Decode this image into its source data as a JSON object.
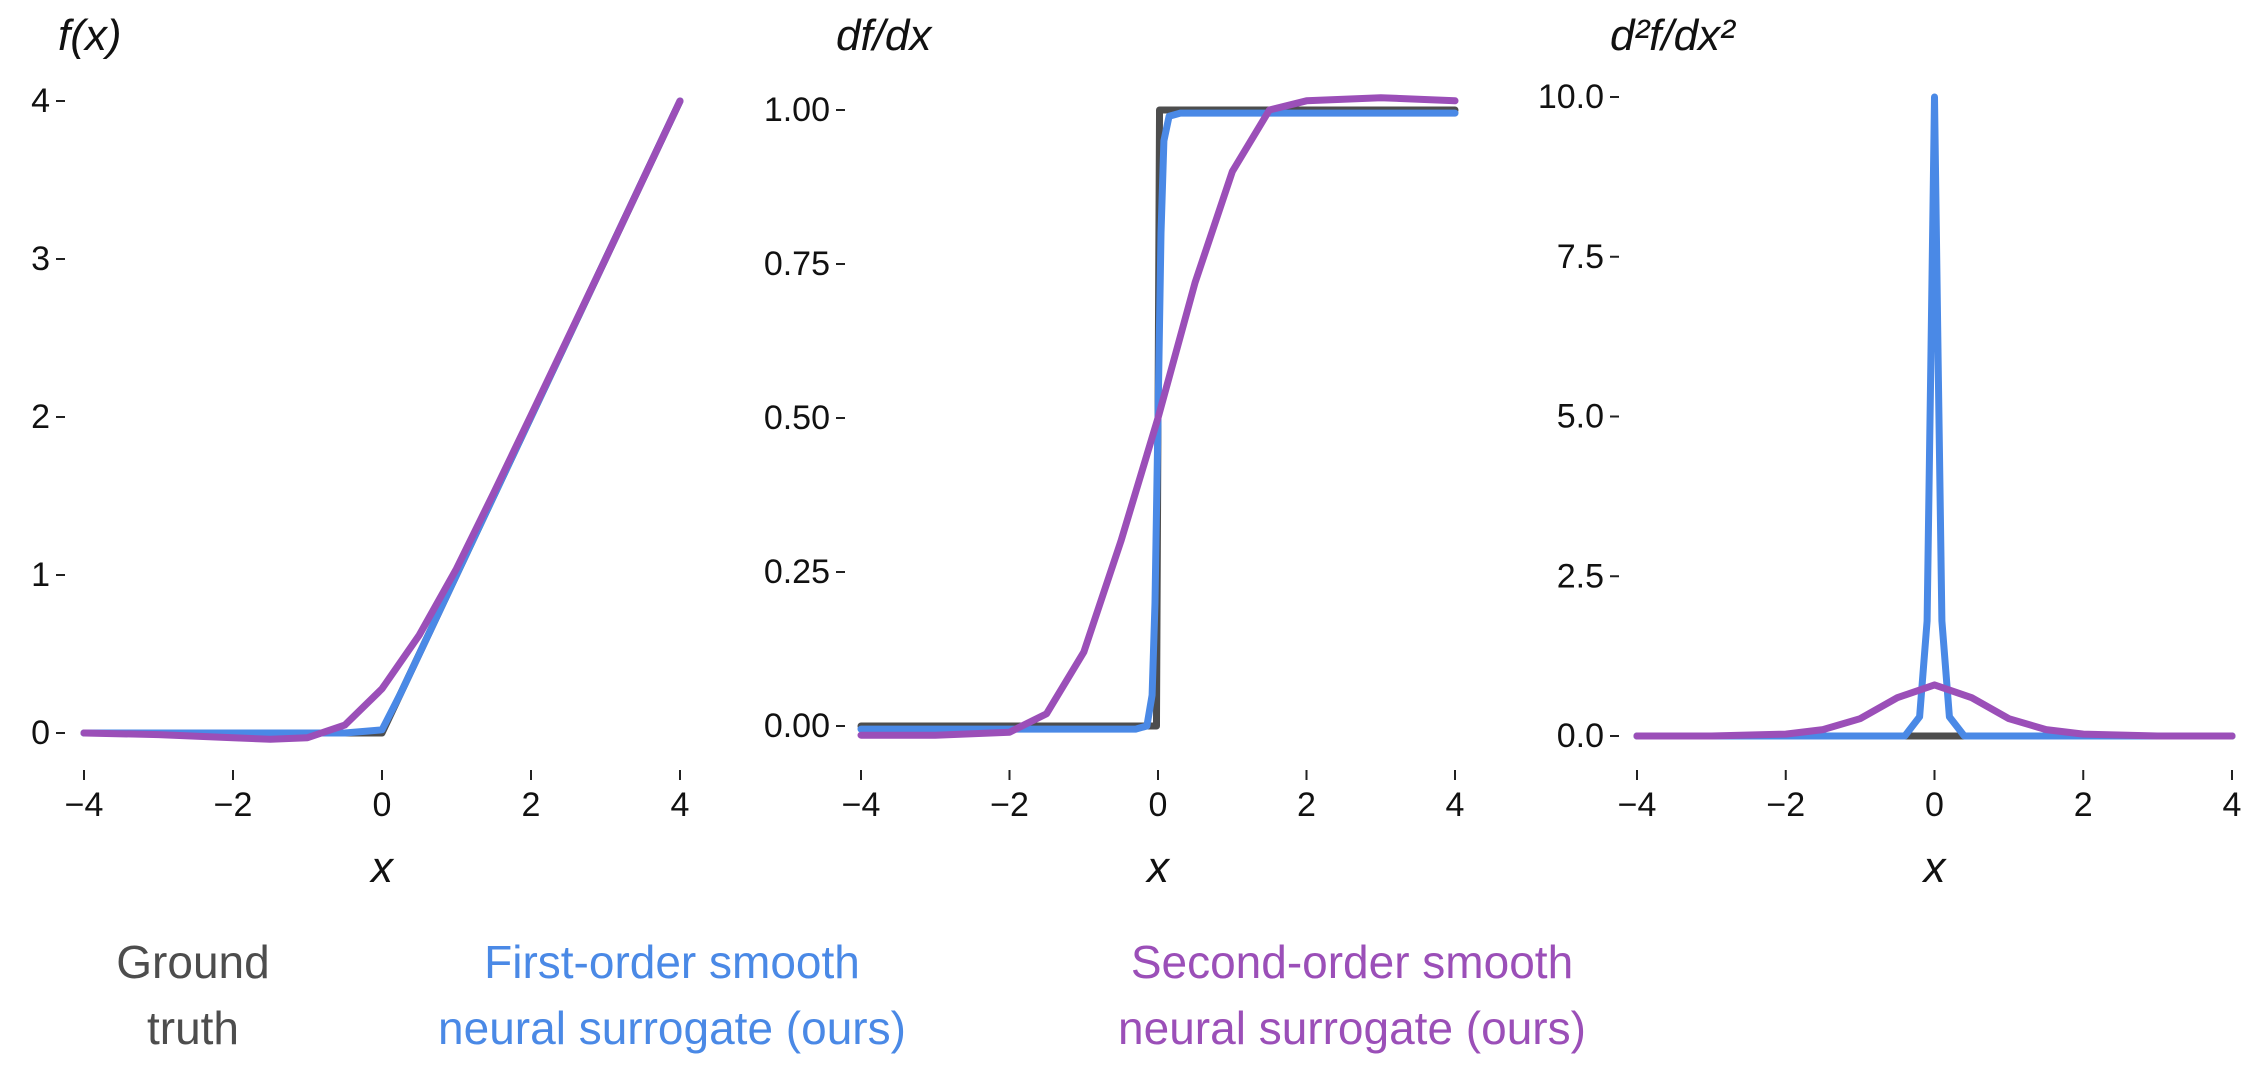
{
  "chart_data": [
    {
      "type": "line",
      "ylabel": "f(x)",
      "xlabel": "x",
      "xlim": [
        -4,
        4
      ],
      "ylim": [
        0,
        4
      ],
      "xticks": [
        -4,
        -2,
        0,
        2,
        4
      ],
      "xtick_labels": [
        "−4",
        "−2",
        "0",
        "2",
        "4"
      ],
      "yticks": [
        0,
        1,
        2,
        3,
        4
      ],
      "ytick_labels": [
        "0",
        "1",
        "2",
        "3",
        "4"
      ],
      "grid": false,
      "series": [
        {
          "name": "Ground truth",
          "color": "#4d4d4d",
          "x": [
            -4,
            -3,
            -2,
            -1,
            0,
            1,
            2,
            3,
            4
          ],
          "y": [
            0,
            0,
            0,
            0,
            0,
            1,
            2,
            3,
            4
          ]
        },
        {
          "name": "First-order smooth neural surrogate (ours)",
          "color": "#4a89e6",
          "x": [
            -4,
            -2,
            -1,
            -0.5,
            0,
            0.25,
            0.5,
            1,
            2,
            3,
            4
          ],
          "y": [
            0,
            0,
            0,
            0,
            0.02,
            0.25,
            0.5,
            1,
            2,
            3,
            4
          ]
        },
        {
          "name": "Second-order smooth neural surrogate (ours)",
          "color": "#9b4fb8",
          "x": [
            -4,
            -3,
            -2,
            -1.5,
            -1,
            -0.5,
            0,
            0.5,
            1,
            1.5,
            2,
            3,
            4
          ],
          "y": [
            0,
            -0.01,
            -0.03,
            -0.04,
            -0.03,
            0.05,
            0.28,
            0.62,
            1.04,
            1.52,
            2.01,
            3,
            4
          ]
        }
      ]
    },
    {
      "type": "line",
      "ylabel": "df/dx",
      "xlabel": "x",
      "xlim": [
        -4,
        4
      ],
      "ylim": [
        0,
        1
      ],
      "xticks": [
        -4,
        -2,
        0,
        2,
        4
      ],
      "xtick_labels": [
        "−4",
        "−2",
        "0",
        "2",
        "4"
      ],
      "yticks": [
        0,
        0.25,
        0.5,
        0.75,
        1
      ],
      "ytick_labels": [
        "0.00",
        "0.25",
        "0.50",
        "0.75",
        "1.00"
      ],
      "grid": false,
      "series": [
        {
          "name": "Ground truth",
          "color": "#4d4d4d",
          "x": [
            -4,
            -0.02,
            -0.02,
            0.02,
            0.02,
            4
          ],
          "y": [
            0,
            0,
            0.01,
            0.99,
            1,
            1
          ]
        },
        {
          "name": "First-order smooth neural surrogate (ours)",
          "color": "#4a89e6",
          "x": [
            -4,
            -0.3,
            -0.15,
            -0.08,
            -0.04,
            0,
            0.04,
            0.08,
            0.15,
            0.3,
            4
          ],
          "y": [
            -0.005,
            -0.005,
            0.0,
            0.05,
            0.2,
            0.5,
            0.8,
            0.95,
            0.99,
            0.995,
            0.995
          ]
        },
        {
          "name": "Second-order smooth neural surrogate (ours)",
          "color": "#9b4fb8",
          "x": [
            -4,
            -3,
            -2,
            -1.5,
            -1,
            -0.5,
            0,
            0.5,
            1,
            1.5,
            2,
            3,
            4
          ],
          "y": [
            -0.015,
            -0.015,
            -0.01,
            0.02,
            0.12,
            0.3,
            0.5,
            0.72,
            0.9,
            1.0,
            1.015,
            1.02,
            1.015
          ]
        }
      ]
    },
    {
      "type": "line",
      "ylabel": "d²f/dx²",
      "xlabel": "x",
      "xlim": [
        -4,
        4
      ],
      "ylim": [
        0,
        10
      ],
      "xticks": [
        -4,
        -2,
        0,
        2,
        4
      ],
      "xtick_labels": [
        "−4",
        "−2",
        "0",
        "2",
        "4"
      ],
      "yticks": [
        0,
        2.5,
        5,
        7.5,
        10
      ],
      "ytick_labels": [
        "0.0",
        "2.5",
        "5.0",
        "7.5",
        "10.0"
      ],
      "grid": false,
      "series": [
        {
          "name": "Ground truth",
          "color": "#4d4d4d",
          "x": [
            -4,
            -0.1,
            0.1,
            4
          ],
          "y": [
            0,
            0,
            0,
            0
          ]
        },
        {
          "name": "First-order smooth neural surrogate (ours)",
          "color": "#4a89e6",
          "x": [
            -4,
            -0.4,
            -0.2,
            -0.1,
            -0.05,
            0,
            0.05,
            0.1,
            0.2,
            0.4,
            4
          ],
          "y": [
            0,
            0,
            0.3,
            1.8,
            5.8,
            10,
            5.8,
            1.8,
            0.3,
            0,
            0
          ]
        },
        {
          "name": "Second-order smooth neural surrogate (ours)",
          "color": "#9b4fb8",
          "x": [
            -4,
            -3,
            -2,
            -1.5,
            -1,
            -0.5,
            0,
            0.5,
            1,
            1.5,
            2,
            3,
            4
          ],
          "y": [
            0,
            0,
            0.03,
            0.1,
            0.27,
            0.6,
            0.8,
            0.6,
            0.27,
            0.1,
            0.03,
            0,
            0
          ]
        }
      ]
    }
  ],
  "legend": [
    {
      "text": "Ground truth",
      "lines": [
        "Ground",
        "truth"
      ],
      "color": "#4d4d4d"
    },
    {
      "text": "First-order smooth neural surrogate (ours)",
      "lines": [
        "First-order smooth",
        "neural surrogate (ours)"
      ],
      "color": "#4a89e6"
    },
    {
      "text": "Second-order smooth neural surrogate (ours)",
      "lines": [
        "Second-order smooth",
        "neural surrogate (ours)"
      ],
      "color": "#9b4fb8"
    }
  ]
}
